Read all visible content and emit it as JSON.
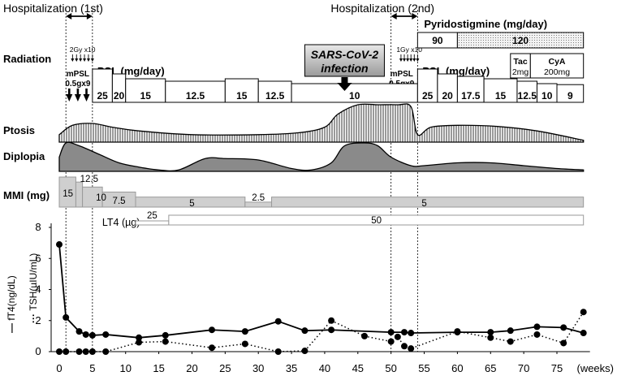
{
  "chart_data": {
    "type": "line",
    "colors": {
      "box": "#ffffff",
      "mmi_fill": "#cfcfcf",
      "mmi_stroke": "#9a9a9a",
      "curve_fill": "#8a8a8a",
      "stroke": "#000000"
    },
    "hospitalization": [
      {
        "label": "Hospitalization (1st)",
        "start": 1,
        "end": 5
      },
      {
        "label": "Hospitalization (2nd)",
        "start": 50,
        "end": 54
      }
    ],
    "radiation": {
      "label": "Radiation",
      "courses": [
        {
          "dose": "2Gy x10",
          "start": 2,
          "end": 5
        },
        {
          "dose": "1Gy x10",
          "start": 51.5,
          "end": 54
        }
      ]
    },
    "mpsl": [
      {
        "label": "mPSL",
        "dose": "0.5gx9",
        "weeks": [
          1.5,
          2.8,
          4.1
        ]
      },
      {
        "label": "mPSL",
        "dose": "0.5gx9",
        "weeks": [
          50.3,
          51.6,
          52.9
        ]
      }
    ],
    "pyridostigmine": {
      "label": "Pyridostigmine (mg/day)",
      "segments": [
        {
          "value": "90",
          "start": 54,
          "end": 60,
          "style": "plain"
        },
        {
          "value": "120",
          "start": 60,
          "end": 79,
          "style": "dotted"
        }
      ]
    },
    "immunosuppressant": [
      {
        "drug": "Tac",
        "dose": "2mg",
        "start": 68,
        "end": 71
      },
      {
        "drug": "CyA",
        "dose": "200mg",
        "start": 71,
        "end": 79
      }
    ],
    "psl": {
      "label": "PSL (mg/day)",
      "segments": [
        {
          "value": "25",
          "start": 5,
          "end": 8
        },
        {
          "value": "20",
          "start": 8,
          "end": 10
        },
        {
          "value": "15",
          "start": 10,
          "end": 16
        },
        {
          "value": "12.5",
          "start": 16,
          "end": 25
        },
        {
          "value": "15",
          "start": 25,
          "end": 30
        },
        {
          "value": "12.5",
          "start": 30,
          "end": 35
        },
        {
          "value": "10",
          "start": 35,
          "end": 54
        },
        {
          "value": "25",
          "start": 54,
          "end": 57
        },
        {
          "value": "20",
          "start": 57,
          "end": 60
        },
        {
          "value": "17.5",
          "start": 60,
          "end": 64
        },
        {
          "value": "15",
          "start": 64,
          "end": 69
        },
        {
          "value": "12.5",
          "start": 69,
          "end": 72
        },
        {
          "value": "10",
          "start": 72,
          "end": 75
        },
        {
          "value": "9",
          "start": 75,
          "end": 79
        }
      ]
    },
    "covid": {
      "label": "SARS-CoV-2 infection",
      "week": 43
    },
    "ptosis": {
      "label": "Ptosis",
      "weeks": [
        0,
        2,
        5,
        8,
        12,
        20,
        30,
        36,
        40,
        42,
        45,
        48,
        51,
        53,
        54,
        56,
        60,
        66,
        72,
        79
      ],
      "severity": [
        0.2,
        0.45,
        0.5,
        0.4,
        0.3,
        0.2,
        0.2,
        0.25,
        0.4,
        0.75,
        1.0,
        1.0,
        1.0,
        0.95,
        0.2,
        0.4,
        0.45,
        0.42,
        0.3,
        0.05
      ]
    },
    "diplopia": {
      "label": "Diplopia",
      "weeks": [
        0,
        1,
        3,
        6,
        9,
        12,
        15,
        18,
        22,
        25,
        30,
        35,
        38,
        41,
        43,
        46,
        48,
        50,
        53,
        55,
        60,
        65,
        70,
        75,
        79
      ],
      "severity": [
        0.5,
        1.0,
        0.9,
        0.6,
        0.3,
        0.15,
        0.05,
        0.05,
        0.45,
        0.45,
        0.4,
        0.1,
        0.05,
        0.3,
        0.9,
        1.0,
        0.9,
        0.5,
        0.2,
        0.2,
        0.3,
        0.3,
        0.2,
        0.1,
        0.05
      ]
    },
    "mmi": {
      "label": "MMI (mg)",
      "max": 15,
      "segments": [
        {
          "value": "15",
          "start": 0,
          "end": 2.5
        },
        {
          "value": "12.5",
          "start": 2.5,
          "end": 3.5
        },
        {
          "value": "10",
          "start": 3.5,
          "end": 6.5
        },
        {
          "value": "7.5",
          "start": 6.5,
          "end": 11.5
        },
        {
          "value": "5",
          "start": 11.5,
          "end": 28
        },
        {
          "value": "2.5",
          "start": 28,
          "end": 32
        },
        {
          "value": "5",
          "start": 32,
          "end": 79
        }
      ]
    },
    "lt4": {
      "label": "LT4 (µg)",
      "segments": [
        {
          "value": "25",
          "start": 11.5,
          "end": 16.5
        },
        {
          "value": "50",
          "start": 16.5,
          "end": 79
        }
      ]
    },
    "xlabel": "(weeks)",
    "xlim": [
      0,
      79
    ],
    "xticks": [
      0,
      5,
      10,
      15,
      20,
      25,
      30,
      35,
      40,
      45,
      50,
      55,
      60,
      65,
      70,
      75
    ],
    "ylim": [
      0,
      8
    ],
    "yticks": [
      0,
      2,
      4,
      6,
      8
    ],
    "legend": [
      {
        "marker": "—",
        "label": "fT4(ng/dL)"
      },
      {
        "marker": "···",
        "label": "TSH(µIU/mL)"
      }
    ],
    "series": [
      {
        "name": "fT4(ng/dL)",
        "style": "solid",
        "x": [
          0,
          1,
          3,
          4,
          5,
          7,
          12,
          16,
          23,
          28,
          33,
          37,
          41,
          50,
          52,
          53,
          60,
          65,
          68,
          72,
          76,
          79
        ],
        "y": [
          6.9,
          2.2,
          1.3,
          1.1,
          1.05,
          1.1,
          0.9,
          1.05,
          1.4,
          1.3,
          1.95,
          1.35,
          1.4,
          1.25,
          1.25,
          1.2,
          1.25,
          1.25,
          1.35,
          1.6,
          1.55,
          1.2
        ]
      },
      {
        "name": "TSH(µIU/mL)",
        "style": "dotted",
        "x": [
          0,
          1,
          3,
          4,
          5,
          7,
          12,
          16,
          23,
          28,
          33,
          37,
          41,
          46,
          50,
          51,
          52,
          53,
          60,
          65,
          68,
          72,
          76,
          79
        ],
        "y": [
          0,
          0,
          0,
          0,
          0,
          0,
          0.6,
          0.65,
          0.25,
          0.5,
          0,
          0.05,
          2.0,
          1.0,
          0.65,
          0.95,
          0.35,
          0.2,
          1.3,
          0.9,
          0.65,
          1.1,
          0.55,
          2.55
        ]
      }
    ]
  }
}
